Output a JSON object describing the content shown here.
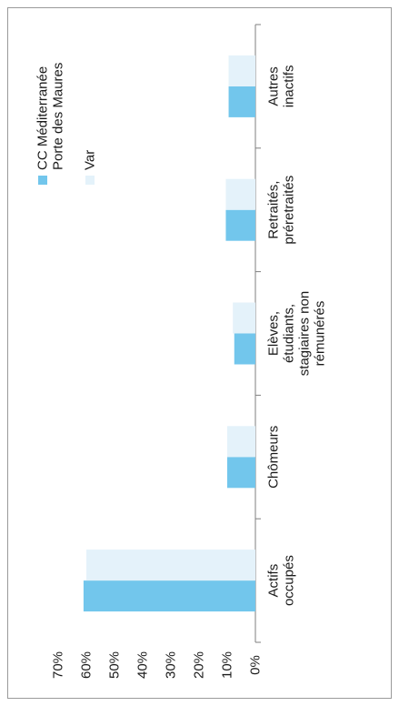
{
  "chart_data": {
    "type": "bar",
    "orientation": "rotated-90-ccw",
    "categories": [
      [
        "Actifs",
        "occupés"
      ],
      [
        "Chômeurs"
      ],
      [
        "Elèves,",
        "étudiants,",
        "stagiaires non",
        "rémunérés"
      ],
      [
        "Retraités,",
        "préretraités"
      ],
      [
        "Autres",
        "inactifs"
      ]
    ],
    "series": [
      {
        "name": "CC Méditerranée Porte des Maures",
        "name_lines": [
          "CC Méditerranée",
          "Porte des Maures"
        ],
        "values": [
          61,
          10,
          7.5,
          10.5,
          9.5
        ],
        "color": "#72c6ec"
      },
      {
        "name": "Var",
        "name_lines": [
          "Var"
        ],
        "values": [
          60,
          10,
          8,
          10.5,
          9.5
        ],
        "color": "#e4f2fa"
      }
    ],
    "ylim": [
      0,
      70
    ],
    "yticks": [
      "0%",
      "10%",
      "20%",
      "30%",
      "40%",
      "50%",
      "60%",
      "70%"
    ],
    "legend_position": "top-right",
    "grid": false
  }
}
